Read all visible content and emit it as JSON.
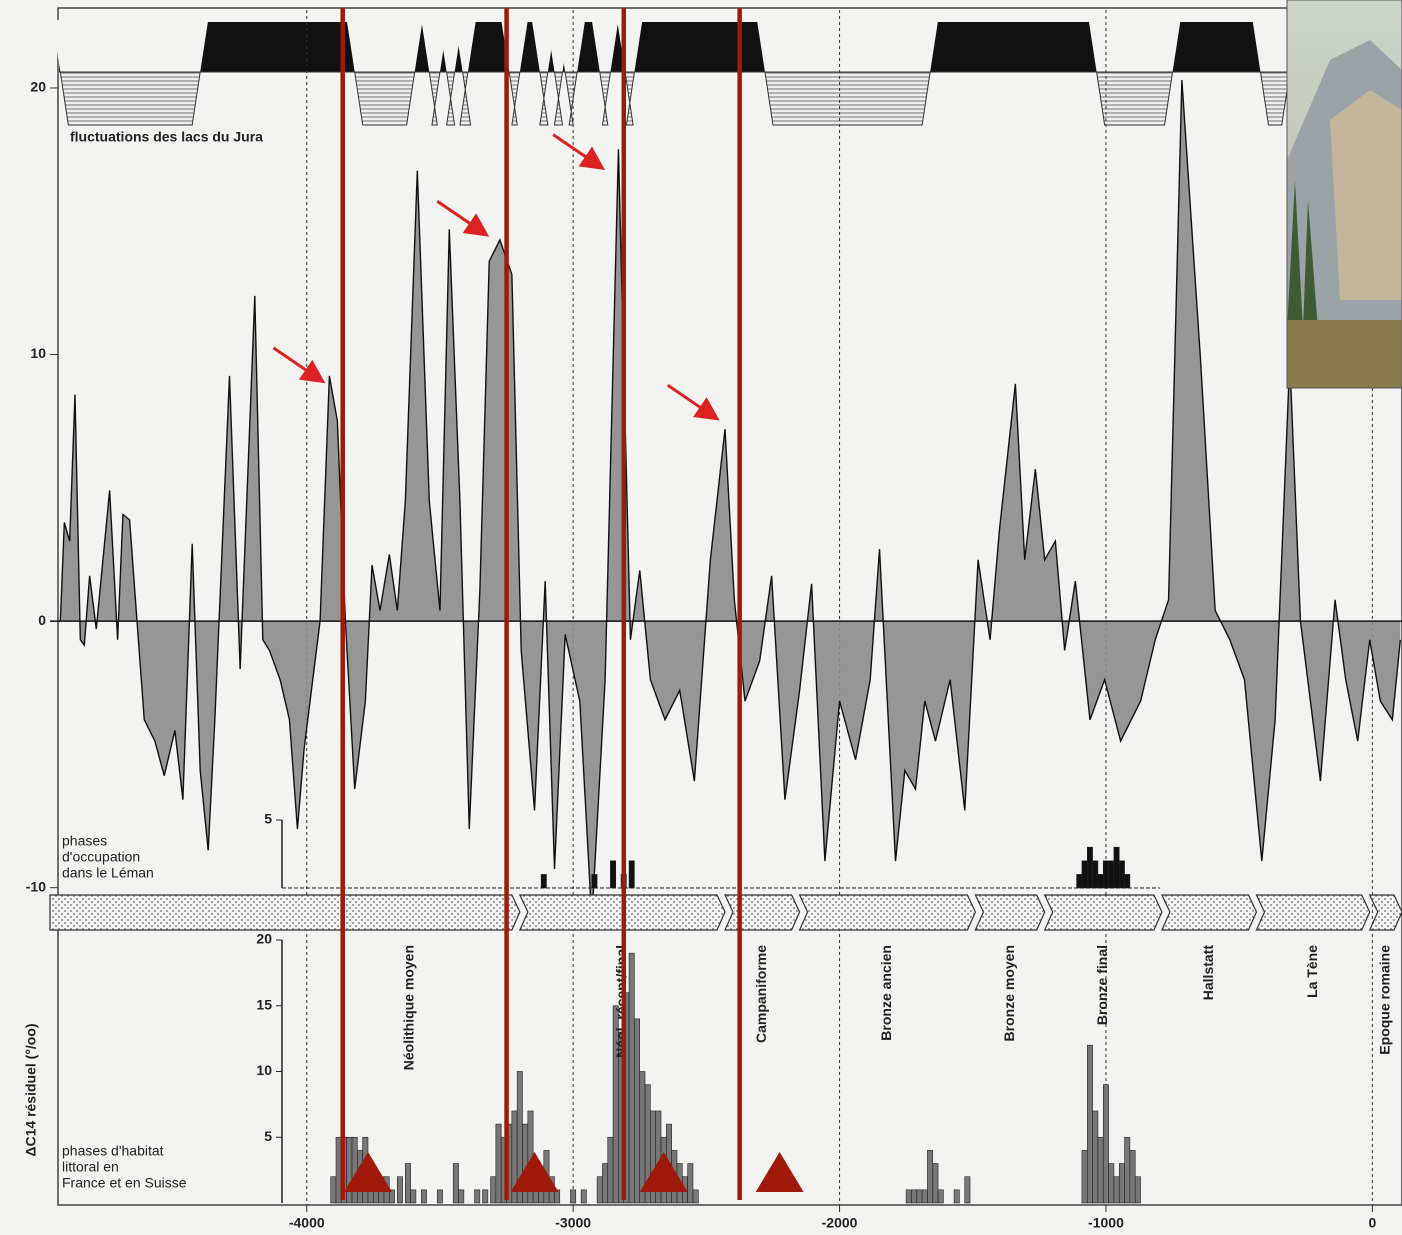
{
  "chart_data": [
    {
      "type": "area",
      "y_label": "ΔC14 résiduel (°/oo)",
      "x": [
        -4925,
        -4910,
        -4890,
        -4870,
        -4850,
        -4835,
        -4815,
        -4790,
        -4740,
        -4710,
        -4690,
        -4665,
        -4635,
        -4610,
        -4570,
        -4535,
        -4495,
        -4465,
        -4430,
        -4400,
        -4370,
        -4345,
        -4290,
        -4250,
        -4195,
        -4165,
        -4140,
        -4100,
        -4065,
        -4035,
        -4010,
        -3950,
        -3915,
        -3885,
        -3855,
        -3820,
        -3780,
        -3755,
        -3725,
        -3690,
        -3660,
        -3630,
        -3585,
        -3540,
        -3500,
        -3465,
        -3425,
        -3390,
        -3350,
        -3315,
        -3275,
        -3230,
        -3195,
        -3145,
        -3105,
        -3070,
        -3030,
        -2975,
        -2930,
        -2880,
        -2830,
        -2785,
        -2750,
        -2710,
        -2655,
        -2600,
        -2545,
        -2485,
        -2430,
        -2395,
        -2355,
        -2300,
        -2255,
        -2205,
        -2150,
        -2105,
        -2055,
        -2000,
        -1940,
        -1885,
        -1850,
        -1790,
        -1755,
        -1715,
        -1680,
        -1640,
        -1585,
        -1530,
        -1480,
        -1435,
        -1400,
        -1340,
        -1305,
        -1265,
        -1230,
        -1190,
        -1155,
        -1115,
        -1060,
        -1005,
        -945,
        -870,
        -815,
        -765,
        -715,
        -645,
        -590,
        -535,
        -480,
        -415,
        -365,
        -310,
        -270,
        -195,
        -140,
        -100,
        -55,
        -10,
        30,
        75,
        105
      ],
      "values": [
        0,
        3.7,
        3,
        8.5,
        -0.7,
        -0.9,
        1.7,
        -0.3,
        4.9,
        -0.7,
        4,
        3.8,
        -0.3,
        -3.7,
        -4.5,
        -5.8,
        -4.1,
        -6.7,
        2.9,
        -5.6,
        -8.6,
        -3.7,
        9.2,
        -1.8,
        12.2,
        -0.7,
        -1.1,
        -2.2,
        -3.7,
        -7.8,
        -4.8,
        0,
        9.2,
        7.5,
        0,
        -6.3,
        -3,
        2.1,
        0.4,
        2.5,
        0.4,
        4.5,
        16.9,
        4.5,
        0.4,
        14.7,
        4.5,
        -7.8,
        1.2,
        13.5,
        14.3,
        13,
        -1.1,
        -7.1,
        1.5,
        -9.3,
        -0.5,
        -3,
        -11.2,
        -2.2,
        17.7,
        -0.7,
        1.9,
        -2.2,
        -3.7,
        -2.6,
        -6,
        2.3,
        7.2,
        0.8,
        -3,
        -1.5,
        1.7,
        -6.7,
        -2.6,
        1.4,
        -9,
        -3,
        -5.2,
        -2.2,
        2.7,
        -9,
        -5.6,
        -6.3,
        -3,
        -4.5,
        -2.2,
        -7.1,
        2.3,
        -0.7,
        3.4,
        8.9,
        2.3,
        5.7,
        2.3,
        3,
        -1.1,
        1.5,
        -3.7,
        -2.2,
        -4.5,
        -3,
        -0.7,
        0.8,
        20.3,
        9.8,
        0.4,
        -0.7,
        -2.2,
        -9,
        -3.7,
        9.8,
        0,
        -6,
        0.8,
        -2.2,
        -4.5,
        -0.7,
        -3,
        -3.7,
        -0.7
      ],
      "color": "#8c8c8c",
      "xlim": [
        -4930,
        115
      ],
      "xticks": [
        -4000,
        -3000,
        -2000,
        -1000,
        0
      ],
      "ylim": [
        -12,
        23
      ],
      "yticks": [
        20,
        10,
        0,
        -10
      ],
      "grid": true,
      "lake_label": "fluctuations des lacs du Jura",
      "lake_low": [
        [
          -4925,
          -4400
        ],
        [
          -3820,
          -3595
        ],
        [
          -3540,
          -3500
        ],
        [
          -3475,
          -3445
        ],
        [
          -3415,
          -3395
        ],
        [
          -3240,
          -3200
        ],
        [
          -3125,
          -3095
        ],
        [
          -3070,
          -3040
        ],
        [
          -3030,
          -2985
        ],
        [
          -2900,
          -2860
        ],
        [
          -2805,
          -2770
        ],
        [
          -2280,
          -1660
        ],
        [
          -1035,
          -750
        ],
        [
          -420,
          -310
        ]
      ],
      "periods": [
        "Néolithique moyen",
        "Néol. récent/final",
        "Campaniforme",
        "Bronze ancien",
        "Bronze moyen",
        "Bronze final",
        "Hallstatt",
        "La Tène",
        "Epoque romaine"
      ],
      "period_bounds": [
        -3200,
        -2430,
        -2150,
        -1490,
        -1230,
        -790,
        -435,
        -10
      ],
      "highlight_color": "#a01a0c",
      "highlight_lines": [
        -3865,
        -3250,
        -2810,
        -2375
      ],
      "highlight_triangles": [
        -3770,
        -3145,
        -2660,
        -2225
      ],
      "arrows": [
        {
          "x": -3930,
          "y": 8.9
        },
        {
          "x": -3315,
          "y": 14.4
        },
        {
          "x": -2880,
          "y": 16.9
        },
        {
          "x": -2450,
          "y": 7.5
        }
      ]
    },
    {
      "type": "bar",
      "label": [
        "phases",
        "d'occupation",
        "dans le Léman"
      ],
      "x": [
        -3110,
        -2920,
        -2850,
        -2810,
        -2780,
        -1100,
        -1080,
        -1060,
        -1040,
        -1020,
        -1000,
        -980,
        -960,
        -940,
        -920
      ],
      "values": [
        1,
        1,
        2,
        1,
        2,
        1,
        2,
        3,
        2,
        1,
        2,
        2,
        3,
        2,
        1
      ],
      "color": "#111111",
      "ylim": [
        0,
        5
      ],
      "yticks": [
        5
      ]
    },
    {
      "type": "bar",
      "label": [
        "phases d'habitat",
        "littoral en",
        "France et en Suisse"
      ],
      "x": [
        -3900,
        -3880,
        -3860,
        -3840,
        -3820,
        -3800,
        -3780,
        -3760,
        -3740,
        -3720,
        -3700,
        -3680,
        -3650,
        -3620,
        -3600,
        -3560,
        -3500,
        -3440,
        -3420,
        -3360,
        -3330,
        -3300,
        -3280,
        -3260,
        -3240,
        -3220,
        -3200,
        -3180,
        -3160,
        -3140,
        -3120,
        -3100,
        -3080,
        -3060,
        -3000,
        -2960,
        -2900,
        -2880,
        -2860,
        -2840,
        -2820,
        -2800,
        -2780,
        -2760,
        -2740,
        -2720,
        -2700,
        -2680,
        -2660,
        -2640,
        -2620,
        -2600,
        -2580,
        -2560,
        -2540,
        -1740,
        -1720,
        -1700,
        -1680,
        -1660,
        -1640,
        -1620,
        -1560,
        -1520,
        -1080,
        -1060,
        -1040,
        -1020,
        -1000,
        -980,
        -960,
        -940,
        -920,
        -900,
        -880
      ],
      "values": [
        2,
        5,
        5,
        5,
        5,
        4,
        5,
        3,
        1,
        2,
        2,
        1,
        2,
        3,
        1,
        1,
        1,
        3,
        1,
        1,
        1,
        2,
        6,
        5,
        6,
        7,
        10,
        6,
        7,
        3,
        2,
        4,
        2,
        1,
        1,
        1,
        2,
        3,
        5,
        15,
        13,
        16,
        19,
        14,
        10,
        9,
        7,
        7,
        5,
        6,
        4,
        3,
        2,
        3,
        1,
        1,
        1,
        1,
        1,
        4,
        3,
        1,
        1,
        2,
        4,
        12,
        7,
        5,
        9,
        3,
        2,
        3,
        5,
        4,
        2
      ],
      "color": "#777777",
      "ylim": [
        0,
        20
      ],
      "yticks": [
        5,
        10,
        15,
        20
      ]
    }
  ]
}
